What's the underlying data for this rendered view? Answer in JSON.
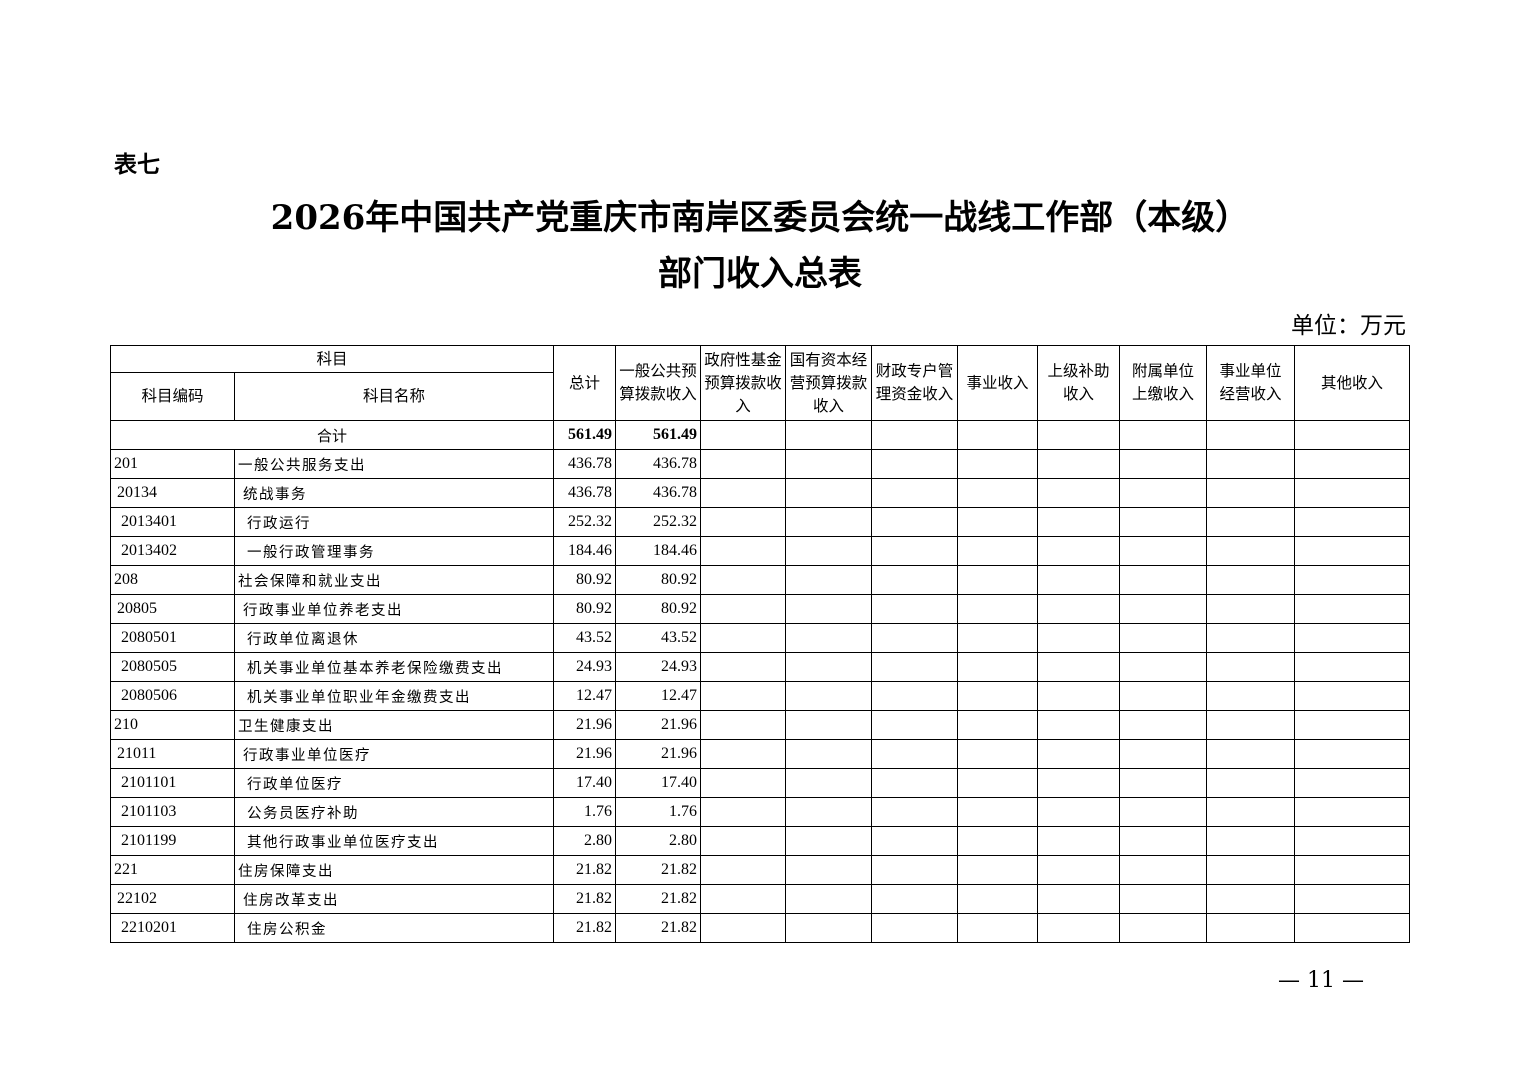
{
  "doc": {
    "tag": "表七",
    "title_line1": "2026年中国共产党重庆市南岸区委员会统一战线工作部（本级）",
    "title_line2": "部门收入总表",
    "unit": "单位：万元",
    "page_number": "— 11 —"
  },
  "table": {
    "headers": {
      "subject": "科目",
      "code": "科目编码",
      "name": "科目名称",
      "total": "总计",
      "general": "一般公共预算拨款收入",
      "gov_fund": "政府性基金预算拨款收入",
      "state_capital": "国有资本经营预算拨款收入",
      "fiscal_special": "财政专户管理资金收入",
      "business": "事业收入",
      "superior": "上级补助收入",
      "affiliated": "附属单位上缴收入",
      "biz_unit": "事业单位经营收入",
      "other": "其他收入"
    },
    "total_row": {
      "label": "合计",
      "total": "561.49",
      "general": "561.49"
    },
    "rows": [
      {
        "level": 1,
        "code": "201",
        "name": "一般公共服务支出",
        "total": "436.78",
        "general": "436.78"
      },
      {
        "level": 2,
        "code": "20134",
        "name": "统战事务",
        "total": "436.78",
        "general": "436.78"
      },
      {
        "level": 3,
        "code": "2013401",
        "name": "行政运行",
        "total": "252.32",
        "general": "252.32"
      },
      {
        "level": 3,
        "code": "2013402",
        "name": "一般行政管理事务",
        "total": "184.46",
        "general": "184.46"
      },
      {
        "level": 1,
        "code": "208",
        "name": "社会保障和就业支出",
        "total": "80.92",
        "general": "80.92"
      },
      {
        "level": 2,
        "code": "20805",
        "name": "行政事业单位养老支出",
        "total": "80.92",
        "general": "80.92"
      },
      {
        "level": 3,
        "code": "2080501",
        "name": "行政单位离退休",
        "total": "43.52",
        "general": "43.52"
      },
      {
        "level": 3,
        "code": "2080505",
        "name": "机关事业单位基本养老保险缴费支出",
        "total": "24.93",
        "general": "24.93"
      },
      {
        "level": 3,
        "code": "2080506",
        "name": "机关事业单位职业年金缴费支出",
        "total": "12.47",
        "general": "12.47"
      },
      {
        "level": 1,
        "code": "210",
        "name": "卫生健康支出",
        "total": "21.96",
        "general": "21.96"
      },
      {
        "level": 2,
        "code": "21011",
        "name": "行政事业单位医疗",
        "total": "21.96",
        "general": "21.96"
      },
      {
        "level": 3,
        "code": "2101101",
        "name": "行政单位医疗",
        "total": "17.40",
        "general": "17.40"
      },
      {
        "level": 3,
        "code": "2101103",
        "name": "公务员医疗补助",
        "total": "1.76",
        "general": "1.76"
      },
      {
        "level": 3,
        "code": "2101199",
        "name": "其他行政事业单位医疗支出",
        "total": "2.80",
        "general": "2.80"
      },
      {
        "level": 1,
        "code": "221",
        "name": "住房保障支出",
        "total": "21.82",
        "general": "21.82"
      },
      {
        "level": 2,
        "code": "22102",
        "name": "住房改革支出",
        "total": "21.82",
        "general": "21.82"
      },
      {
        "level": 3,
        "code": "2210201",
        "name": "住房公积金",
        "total": "21.82",
        "general": "21.82"
      }
    ]
  }
}
